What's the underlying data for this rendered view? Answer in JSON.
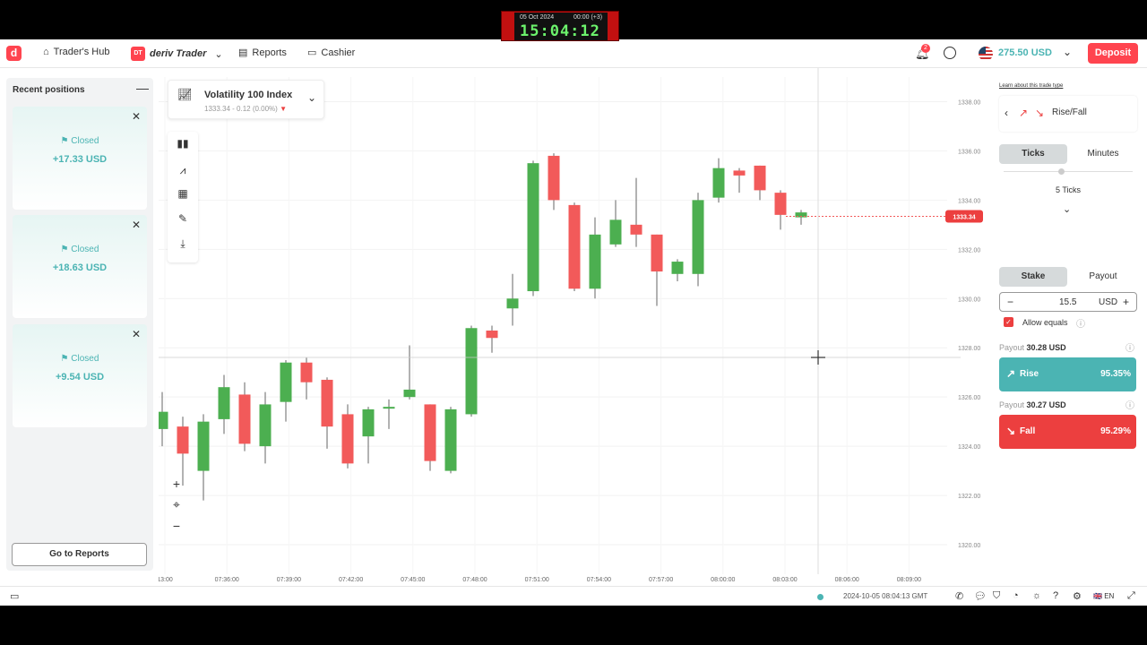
{
  "header": {
    "traders_hub": "Trader's Hub",
    "brand": "deriv Trader",
    "brand_badge": "DT",
    "reports": "Reports",
    "cashier": "Cashier",
    "notification_count": "2",
    "balance": "275.50 USD",
    "deposit": "Deposit"
  },
  "clock": {
    "date": "05 Oct 2024",
    "small": "00:00 (+3)",
    "time": "15:04:12"
  },
  "recent_positions": {
    "title": "Recent positions",
    "cards": [
      {
        "status": "Closed",
        "value": "+17.33 USD"
      },
      {
        "status": "Closed",
        "value": "+18.63 USD"
      },
      {
        "status": "Closed",
        "value": "+9.54 USD"
      }
    ],
    "go_to_reports": "Go to Reports"
  },
  "symbol": {
    "name": "Volatility 100 Index",
    "price_change": "1333.34 - 0.12 (0.00%)"
  },
  "chart_data": {
    "type": "candlestick",
    "y_ticks": [
      "1320.00",
      "1322.00",
      "1324.00",
      "1326.00",
      "1328.00",
      "1330.00",
      "1332.00",
      "1334.00",
      "1336.00",
      "1338.00"
    ],
    "ylim": [
      1318.8,
      1339.0
    ],
    "x_ticks": [
      "13:00",
      "07:36:00",
      "07:39:00",
      "07:42:00",
      "07:45:00",
      "07:48:00",
      "07:51:00",
      "07:54:00",
      "07:57:00",
      "08:00:00",
      "08:03:00",
      "08:06:00",
      "08:09:00"
    ],
    "current_price": "1333.34",
    "candles": [
      {
        "o": 1324.7,
        "c": 1325.4,
        "h": 1326.2,
        "l": 1324.0
      },
      {
        "o": 1324.8,
        "c": 1323.7,
        "h": 1325.2,
        "l": 1322.4
      },
      {
        "o": 1323.0,
        "c": 1325.0,
        "h": 1325.3,
        "l": 1321.8
      },
      {
        "o": 1325.1,
        "c": 1326.4,
        "h": 1326.9,
        "l": 1324.5
      },
      {
        "o": 1326.1,
        "c": 1324.1,
        "h": 1326.6,
        "l": 1323.8
      },
      {
        "o": 1324.0,
        "c": 1325.7,
        "h": 1326.2,
        "l": 1323.3
      },
      {
        "o": 1325.8,
        "c": 1327.4,
        "h": 1327.5,
        "l": 1325.0
      },
      {
        "o": 1327.4,
        "c": 1326.6,
        "h": 1327.6,
        "l": 1325.9
      },
      {
        "o": 1326.7,
        "c": 1324.8,
        "h": 1326.8,
        "l": 1323.9
      },
      {
        "o": 1325.3,
        "c": 1323.3,
        "h": 1325.7,
        "l": 1323.1
      },
      {
        "o": 1324.4,
        "c": 1325.5,
        "h": 1325.6,
        "l": 1323.3
      },
      {
        "o": 1325.6,
        "c": 1325.6,
        "h": 1325.9,
        "l": 1324.7
      },
      {
        "o": 1326.0,
        "c": 1326.3,
        "h": 1328.1,
        "l": 1325.9
      },
      {
        "o": 1325.7,
        "c": 1323.4,
        "h": 1325.7,
        "l": 1323.0
      },
      {
        "o": 1323.0,
        "c": 1325.5,
        "h": 1325.6,
        "l": 1322.9
      },
      {
        "o": 1325.3,
        "c": 1328.8,
        "h": 1328.9,
        "l": 1325.2
      },
      {
        "o": 1328.7,
        "c": 1328.4,
        "h": 1328.9,
        "l": 1327.8
      },
      {
        "o": 1329.6,
        "c": 1330.0,
        "h": 1331.0,
        "l": 1328.9
      },
      {
        "o": 1330.3,
        "c": 1335.5,
        "h": 1335.6,
        "l": 1330.1
      },
      {
        "o": 1335.8,
        "c": 1334.0,
        "h": 1335.9,
        "l": 1333.6
      },
      {
        "o": 1333.8,
        "c": 1330.4,
        "h": 1333.9,
        "l": 1330.3
      },
      {
        "o": 1330.4,
        "c": 1332.6,
        "h": 1333.3,
        "l": 1330.0
      },
      {
        "o": 1332.2,
        "c": 1333.2,
        "h": 1334.0,
        "l": 1332.1
      },
      {
        "o": 1333.0,
        "c": 1332.6,
        "h": 1334.9,
        "l": 1332.1
      },
      {
        "o": 1332.6,
        "c": 1331.1,
        "h": 1332.6,
        "l": 1329.7
      },
      {
        "o": 1331.0,
        "c": 1331.5,
        "h": 1331.6,
        "l": 1330.7
      },
      {
        "o": 1331.0,
        "c": 1334.0,
        "h": 1334.3,
        "l": 1330.5
      },
      {
        "o": 1334.1,
        "c": 1335.3,
        "h": 1335.7,
        "l": 1333.9
      },
      {
        "o": 1335.2,
        "c": 1335.0,
        "h": 1335.3,
        "l": 1334.3
      },
      {
        "o": 1335.4,
        "c": 1334.4,
        "h": 1335.4,
        "l": 1334.0
      },
      {
        "o": 1334.3,
        "c": 1333.4,
        "h": 1334.4,
        "l": 1332.8
      },
      {
        "o": 1333.3,
        "c": 1333.5,
        "h": 1333.6,
        "l": 1333.0
      }
    ]
  },
  "trade": {
    "learn": "Learn about this trade type",
    "trade_type": "Rise/Fall",
    "tab_ticks": "Ticks",
    "tab_minutes": "Minutes",
    "ticks_label": "5 Ticks",
    "tab_stake": "Stake",
    "tab_payout": "Payout",
    "stake_value": "15.5",
    "currency": "USD",
    "allow_equals": "Allow equals",
    "payout_label": "Payout",
    "rise_payout": "30.28 USD",
    "fall_payout": "30.27 USD",
    "rise": "Rise",
    "rise_pct": "95.35%",
    "fall": "Fall",
    "fall_pct": "95.29%"
  },
  "footer": {
    "timestamp": "2024-10-05 08:04:13 GMT",
    "lang": "EN"
  }
}
